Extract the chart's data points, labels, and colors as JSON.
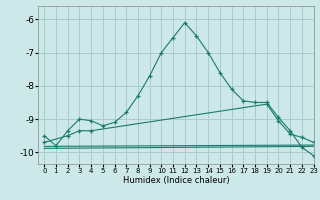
{
  "xlabel": "Humidex (Indice chaleur)",
  "background_color": "#cce8e8",
  "grid_color": "#aacccc",
  "line_color": "#1a7a6e",
  "xlim": [
    -0.5,
    23
  ],
  "ylim": [
    -10.35,
    -5.6
  ],
  "yticks": [
    -10,
    -9,
    -8,
    -7,
    -6
  ],
  "xticks": [
    0,
    1,
    2,
    3,
    4,
    5,
    6,
    7,
    8,
    9,
    10,
    11,
    12,
    13,
    14,
    15,
    16,
    17,
    18,
    19,
    20,
    21,
    22,
    23
  ],
  "series": [
    {
      "x": [
        0,
        1,
        2,
        3,
        4,
        5,
        6,
        7,
        8,
        9,
        10,
        11,
        12,
        13,
        14,
        15,
        16,
        17,
        18,
        19,
        20,
        21,
        22,
        23
      ],
      "y": [
        -9.5,
        -9.8,
        -9.35,
        -9.0,
        -9.05,
        -9.2,
        -9.1,
        -8.8,
        -8.3,
        -7.7,
        -7.0,
        -6.55,
        -6.1,
        -6.5,
        -7.0,
        -7.6,
        -8.1,
        -8.45,
        -8.5,
        -8.5,
        -8.95,
        -9.35,
        -9.85,
        -10.1
      ],
      "marker": "+"
    },
    {
      "x": [
        0,
        2,
        3,
        4,
        19,
        20,
        21,
        22,
        23
      ],
      "y": [
        -9.7,
        -9.5,
        -9.35,
        -9.35,
        -8.55,
        -9.05,
        -9.45,
        -9.55,
        -9.7
      ],
      "marker": "+"
    },
    {
      "x": [
        0,
        23
      ],
      "y": [
        -9.82,
        -9.78
      ],
      "marker": null
    },
    {
      "x": [
        0,
        23
      ],
      "y": [
        -9.88,
        -9.82
      ],
      "marker": null
    }
  ]
}
